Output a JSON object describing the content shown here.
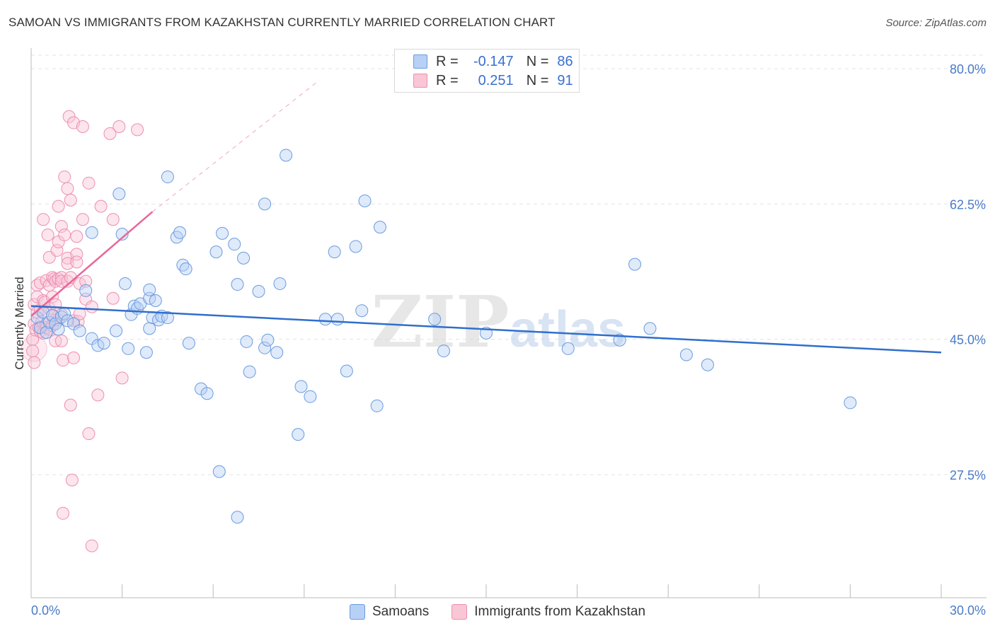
{
  "header": {
    "title": "SAMOAN VS IMMIGRANTS FROM KAZAKHSTAN CURRENTLY MARRIED CORRELATION CHART",
    "source": "Source: ZipAtlas.com"
  },
  "legend": {
    "r_label": "R =",
    "n_label": "N =",
    "rows": [
      {
        "r": "-0.147",
        "n": "86",
        "fill": "#b7d0f5",
        "stroke": "#6b9be0"
      },
      {
        "r": "0.251",
        "n": "91",
        "fill": "#f9c6d6",
        "stroke": "#ee8eb0"
      }
    ]
  },
  "watermark": {
    "zip": "ZIP",
    "atlas": "atlas"
  },
  "bottom_legend": [
    {
      "label": "Samoans",
      "fill": "#b7d0f5",
      "stroke": "#6b9be0"
    },
    {
      "label": "Immigrants from Kazakhstan",
      "fill": "#f9c6d6",
      "stroke": "#ee8eb0"
    }
  ],
  "chart_data": {
    "type": "scatter",
    "title": "SAMOAN VS IMMIGRANTS FROM KAZAKHSTAN CURRENTLY MARRIED CORRELATION CHART",
    "ylabel": "Currently Married",
    "xlabel": "",
    "xlim": [
      0,
      30
    ],
    "ylim": [
      10,
      85
    ],
    "x_tick_labels": [
      "0.0%",
      "30.0%"
    ],
    "y_ticks": [
      27.5,
      45.0,
      62.5,
      80.0
    ],
    "y_tick_labels": [
      "27.5%",
      "45.0%",
      "62.5%",
      "80.0%"
    ],
    "grid": true,
    "legend_position": "top-center",
    "series": [
      {
        "name": "Samoans",
        "color": "#6b9be0",
        "fill": "#b7d0f5",
        "r": -0.147,
        "n": 86,
        "trend": {
          "x": [
            0,
            30
          ],
          "y": [
            49.3,
            43.3
          ]
        },
        "points": [
          [
            0.2,
            47.8
          ],
          [
            0.3,
            46.5
          ],
          [
            0.4,
            48.5
          ],
          [
            0.5,
            45.9
          ],
          [
            0.6,
            47.2
          ],
          [
            0.7,
            48.1
          ],
          [
            0.8,
            47.0
          ],
          [
            0.9,
            46.3
          ],
          [
            1.0,
            47.9
          ],
          [
            1.1,
            48.3
          ],
          [
            1.2,
            47.4
          ],
          [
            1.4,
            47.0
          ],
          [
            1.6,
            46.1
          ],
          [
            1.8,
            51.3
          ],
          [
            2.0,
            45.1
          ],
          [
            2.0,
            58.8
          ],
          [
            2.2,
            44.2
          ],
          [
            2.4,
            44.5
          ],
          [
            2.8,
            46.1
          ],
          [
            2.9,
            63.8
          ],
          [
            3.0,
            58.6
          ],
          [
            3.1,
            52.2
          ],
          [
            3.2,
            43.8
          ],
          [
            3.3,
            48.2
          ],
          [
            3.4,
            49.3
          ],
          [
            3.5,
            49.0
          ],
          [
            3.6,
            49.6
          ],
          [
            3.8,
            43.3
          ],
          [
            3.9,
            50.3
          ],
          [
            3.9,
            46.4
          ],
          [
            3.9,
            51.4
          ],
          [
            4.0,
            47.8
          ],
          [
            4.1,
            50.0
          ],
          [
            4.2,
            47.5
          ],
          [
            4.3,
            48.0
          ],
          [
            4.5,
            47.8
          ],
          [
            4.5,
            66.0
          ],
          [
            4.8,
            58.2
          ],
          [
            4.9,
            58.8
          ],
          [
            5.0,
            54.6
          ],
          [
            5.1,
            54.1
          ],
          [
            5.2,
            44.5
          ],
          [
            5.6,
            38.6
          ],
          [
            5.8,
            38.0
          ],
          [
            6.1,
            56.3
          ],
          [
            6.2,
            27.9
          ],
          [
            6.3,
            58.7
          ],
          [
            6.7,
            57.3
          ],
          [
            6.8,
            22.0
          ],
          [
            6.8,
            52.1
          ],
          [
            7.0,
            55.5
          ],
          [
            7.1,
            44.7
          ],
          [
            7.2,
            40.8
          ],
          [
            7.5,
            51.2
          ],
          [
            7.7,
            62.5
          ],
          [
            7.7,
            43.9
          ],
          [
            7.8,
            44.9
          ],
          [
            8.1,
            43.3
          ],
          [
            8.2,
            52.2
          ],
          [
            8.4,
            68.8
          ],
          [
            8.8,
            32.7
          ],
          [
            8.9,
            38.9
          ],
          [
            9.2,
            37.6
          ],
          [
            9.7,
            47.6
          ],
          [
            10.0,
            56.3
          ],
          [
            10.1,
            47.6
          ],
          [
            10.4,
            40.9
          ],
          [
            10.7,
            57.0
          ],
          [
            10.9,
            48.7
          ],
          [
            11.0,
            62.9
          ],
          [
            11.4,
            36.4
          ],
          [
            11.5,
            59.5
          ],
          [
            13.3,
            47.6
          ],
          [
            13.6,
            43.5
          ],
          [
            15.0,
            45.8
          ],
          [
            17.7,
            43.8
          ],
          [
            19.4,
            44.9
          ],
          [
            19.9,
            54.7
          ],
          [
            20.4,
            46.4
          ],
          [
            21.6,
            43.0
          ],
          [
            22.3,
            41.7
          ],
          [
            27.0,
            36.8
          ]
        ]
      },
      {
        "name": "Immigrants from Kazakhstan",
        "color": "#ee8eb0",
        "fill": "#f9c6d6",
        "r": 0.251,
        "n": 91,
        "trend": {
          "x": [
            0,
            4.0
          ],
          "y": [
            48.0,
            61.5
          ]
        },
        "trend_extension": {
          "x": [
            4.0,
            9.5
          ],
          "y": [
            61.5,
            78.5
          ]
        },
        "points": [
          [
            0.05,
            45.0
          ],
          [
            0.05,
            43.5
          ],
          [
            0.1,
            47.0
          ],
          [
            0.1,
            42.0
          ],
          [
            0.1,
            49.5
          ],
          [
            0.15,
            46.2
          ],
          [
            0.2,
            52.0
          ],
          [
            0.2,
            50.5
          ],
          [
            0.2,
            48.5
          ],
          [
            0.25,
            46.5
          ],
          [
            0.3,
            52.3
          ],
          [
            0.3,
            48.8
          ],
          [
            0.3,
            46.0
          ],
          [
            0.35,
            47.3
          ],
          [
            0.4,
            50.0
          ],
          [
            0.4,
            45.8
          ],
          [
            0.4,
            60.5
          ],
          [
            0.45,
            49.8
          ],
          [
            0.5,
            52.6
          ],
          [
            0.5,
            47.0
          ],
          [
            0.5,
            46.5
          ],
          [
            0.55,
            58.5
          ],
          [
            0.6,
            55.6
          ],
          [
            0.6,
            52.0
          ],
          [
            0.6,
            49.0
          ],
          [
            0.6,
            46.3
          ],
          [
            0.7,
            53.0
          ],
          [
            0.7,
            50.5
          ],
          [
            0.7,
            48.0
          ],
          [
            0.7,
            46.8
          ],
          [
            0.75,
            52.8
          ],
          [
            0.8,
            52.5
          ],
          [
            0.8,
            49.5
          ],
          [
            0.8,
            47.5
          ],
          [
            0.8,
            44.8
          ],
          [
            0.85,
            56.5
          ],
          [
            0.9,
            62.2
          ],
          [
            0.9,
            57.6
          ],
          [
            0.9,
            52.8
          ],
          [
            0.9,
            47.5
          ],
          [
            1.0,
            59.6
          ],
          [
            1.0,
            53.0
          ],
          [
            1.0,
            52.5
          ],
          [
            1.0,
            48.2
          ],
          [
            1.0,
            44.8
          ],
          [
            1.05,
            42.3
          ],
          [
            1.05,
            22.5
          ],
          [
            1.1,
            66.0
          ],
          [
            1.1,
            58.5
          ],
          [
            1.2,
            64.5
          ],
          [
            1.2,
            55.5
          ],
          [
            1.2,
            54.8
          ],
          [
            1.2,
            52.5
          ],
          [
            1.25,
            73.8
          ],
          [
            1.3,
            63.0
          ],
          [
            1.3,
            53.0
          ],
          [
            1.3,
            36.5
          ],
          [
            1.35,
            26.8
          ],
          [
            1.4,
            73.0
          ],
          [
            1.4,
            47.4
          ],
          [
            1.4,
            42.6
          ],
          [
            1.5,
            58.3
          ],
          [
            1.5,
            56.0
          ],
          [
            1.5,
            55.0
          ],
          [
            1.55,
            47.3
          ],
          [
            1.6,
            52.2
          ],
          [
            1.6,
            48.3
          ],
          [
            1.7,
            72.5
          ],
          [
            1.7,
            60.5
          ],
          [
            1.8,
            52.5
          ],
          [
            1.8,
            50.2
          ],
          [
            1.9,
            65.2
          ],
          [
            1.9,
            32.8
          ],
          [
            2.0,
            18.3
          ],
          [
            2.0,
            49.2
          ],
          [
            2.2,
            37.8
          ],
          [
            2.3,
            62.2
          ],
          [
            2.6,
            71.6
          ],
          [
            2.7,
            50.3
          ],
          [
            2.7,
            60.5
          ],
          [
            2.9,
            72.5
          ],
          [
            3.0,
            40.0
          ],
          [
            3.5,
            72.1
          ]
        ]
      }
    ]
  }
}
